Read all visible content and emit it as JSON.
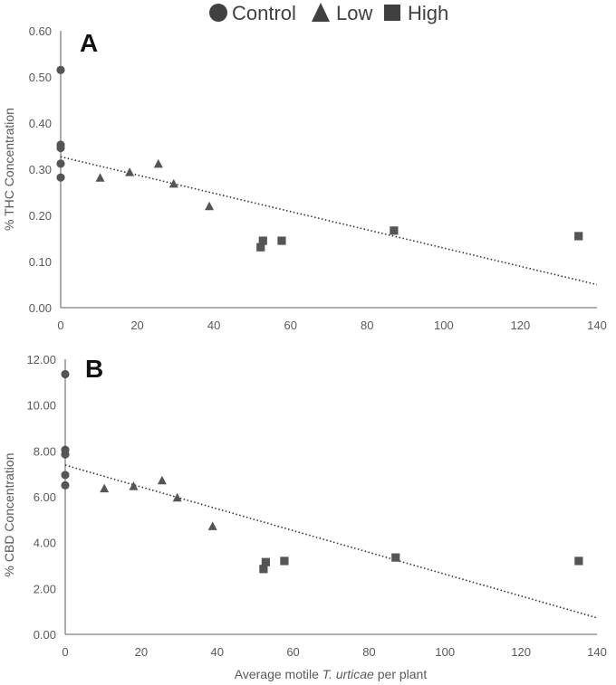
{
  "legend": {
    "items": [
      {
        "label": "Control",
        "marker": "circle"
      },
      {
        "label": "Low",
        "marker": "triangle"
      },
      {
        "label": "High",
        "marker": "square"
      }
    ]
  },
  "colors": {
    "marker": "#555555",
    "axis": "#7f7f7f",
    "text": "#595959",
    "trend": "#333333"
  },
  "chart_data": [
    {
      "type": "scatter",
      "panel_label": "A",
      "ylabel": "% THC Concentration",
      "xlabel": "",
      "xlim": [
        0,
        140
      ],
      "ylim": [
        0,
        0.6
      ],
      "x_ticks": [
        "0",
        "20",
        "40",
        "60",
        "80",
        "100",
        "120",
        "140"
      ],
      "y_ticks": [
        "0.00",
        "0.10",
        "0.20",
        "0.30",
        "0.40",
        "0.50",
        "0.60"
      ],
      "series": [
        {
          "name": "Control",
          "marker": "circle",
          "points": [
            [
              0,
              0.515
            ],
            [
              0,
              0.353
            ],
            [
              0,
              0.346
            ],
            [
              0,
              0.312
            ],
            [
              0,
              0.282
            ]
          ]
        },
        {
          "name": "Low",
          "marker": "triangle",
          "points": [
            [
              10.3,
              0.281
            ],
            [
              18.0,
              0.293
            ],
            [
              25.5,
              0.311
            ],
            [
              29.5,
              0.268
            ],
            [
              38.8,
              0.219
            ]
          ]
        },
        {
          "name": "High",
          "marker": "square",
          "points": [
            [
              52.2,
              0.131
            ],
            [
              52.8,
              0.145
            ],
            [
              57.7,
              0.145
            ],
            [
              87.0,
              0.167
            ],
            [
              135.2,
              0.155
            ]
          ]
        }
      ],
      "trendline": {
        "style": "dotted",
        "from": [
          0,
          0.327
        ],
        "to": [
          140,
          0.05
        ]
      }
    },
    {
      "type": "scatter",
      "panel_label": "B",
      "ylabel": "% CBD Concentration",
      "xlabel_prefix": "Average motile ",
      "xlabel_italic": "T. urticae",
      "xlabel_suffix": " per plant",
      "xlim": [
        0,
        140
      ],
      "ylim": [
        0,
        12
      ],
      "x_ticks": [
        "0",
        "20",
        "40",
        "60",
        "80",
        "100",
        "120",
        "140"
      ],
      "y_ticks": [
        "0.00",
        "2.00",
        "4.00",
        "6.00",
        "8.00",
        "10.00",
        "12.00"
      ],
      "series": [
        {
          "name": "Control",
          "marker": "circle",
          "points": [
            [
              0,
              11.35
            ],
            [
              0,
              8.05
            ],
            [
              0,
              7.85
            ],
            [
              0,
              6.95
            ],
            [
              0,
              6.5
            ]
          ]
        },
        {
          "name": "Low",
          "marker": "triangle",
          "points": [
            [
              10.3,
              6.35
            ],
            [
              18.0,
              6.45
            ],
            [
              25.5,
              6.7
            ],
            [
              29.5,
              5.95
            ],
            [
              38.8,
              4.7
            ]
          ]
        },
        {
          "name": "High",
          "marker": "square",
          "points": [
            [
              52.2,
              2.85
            ],
            [
              52.8,
              3.15
            ],
            [
              57.7,
              3.2
            ],
            [
              87.0,
              3.35
            ],
            [
              135.2,
              3.2
            ]
          ]
        }
      ],
      "trendline": {
        "style": "dotted",
        "from": [
          0,
          7.38
        ],
        "to": [
          140,
          0.72
        ]
      }
    }
  ]
}
